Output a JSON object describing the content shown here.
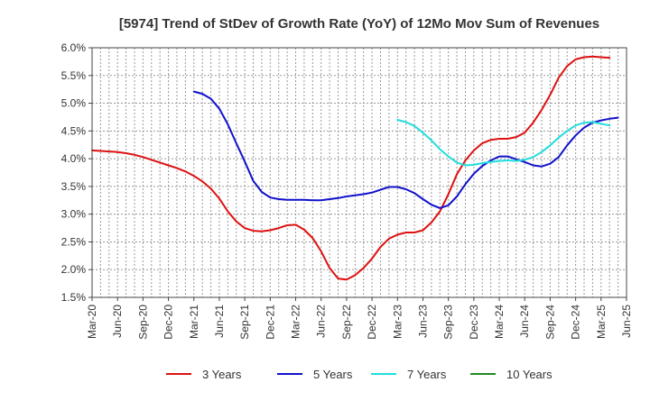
{
  "chart_data": {
    "type": "line",
    "title": "[5974]  Trend of StDev of Growth Rate (YoY) of 12Mo Mov Sum of Revenues",
    "xlabel": "",
    "ylabel": "",
    "ylim": [
      1.5,
      6.0
    ],
    "yticks": [
      "6.0%",
      "5.5%",
      "5.0%",
      "4.5%",
      "4.0%",
      "3.5%",
      "3.0%",
      "2.5%",
      "2.0%",
      "1.5%"
    ],
    "ytick_values": [
      6.0,
      5.5,
      5.0,
      4.5,
      4.0,
      3.5,
      3.0,
      2.5,
      2.0,
      1.5
    ],
    "x_tick_labels": [
      "Mar-20",
      "Jun-20",
      "Sep-20",
      "Dec-20",
      "Mar-21",
      "Jun-21",
      "Sep-21",
      "Dec-21",
      "Mar-22",
      "Jun-22",
      "Sep-22",
      "Dec-22",
      "Mar-23",
      "Jun-23",
      "Sep-23",
      "Dec-23",
      "Mar-24",
      "Jun-24",
      "Sep-24",
      "Dec-24",
      "Mar-25",
      "Jun-25"
    ],
    "x_months": 63,
    "grid": true,
    "legend_position": "bottom",
    "series": [
      {
        "name": "3 Years",
        "color": "#dd1111",
        "start_month": 0,
        "values": [
          4.15,
          4.14,
          4.13,
          4.12,
          4.1,
          4.07,
          4.03,
          3.98,
          3.93,
          3.88,
          3.83,
          3.77,
          3.69,
          3.59,
          3.46,
          3.28,
          3.05,
          2.87,
          2.75,
          2.7,
          2.69,
          2.71,
          2.75,
          2.8,
          2.81,
          2.72,
          2.57,
          2.33,
          2.03,
          1.84,
          1.82,
          1.9,
          2.03,
          2.2,
          2.41,
          2.56,
          2.63,
          2.67,
          2.67,
          2.71,
          2.85,
          3.05,
          3.36,
          3.72,
          3.97,
          4.15,
          4.28,
          4.34,
          4.36,
          4.36,
          4.39,
          4.47,
          4.65,
          4.88,
          5.15,
          5.46,
          5.67,
          5.79,
          5.83,
          5.84,
          5.83,
          5.82
        ]
      },
      {
        "name": "5 Years",
        "color": "#1111cc",
        "start_month": 12,
        "values": [
          5.21,
          5.17,
          5.08,
          4.9,
          4.62,
          4.28,
          3.95,
          3.6,
          3.4,
          3.3,
          3.27,
          3.26,
          3.26,
          3.26,
          3.25,
          3.25,
          3.27,
          3.29,
          3.32,
          3.34,
          3.36,
          3.39,
          3.44,
          3.49,
          3.49,
          3.45,
          3.38,
          3.27,
          3.17,
          3.11,
          3.16,
          3.32,
          3.54,
          3.73,
          3.87,
          3.97,
          4.04,
          4.04,
          3.99,
          3.94,
          3.88,
          3.86,
          3.91,
          4.03,
          4.24,
          4.42,
          4.56,
          4.65,
          4.69,
          4.72,
          4.74
        ]
      },
      {
        "name": "7 Years",
        "color": "#22dddd",
        "start_month": 36,
        "values": [
          4.7,
          4.66,
          4.59,
          4.47,
          4.33,
          4.17,
          4.04,
          3.93,
          3.88,
          3.89,
          3.92,
          3.94,
          3.96,
          3.97,
          3.96,
          3.98,
          4.03,
          4.12,
          4.24,
          4.38,
          4.5,
          4.6,
          4.65,
          4.66,
          4.63,
          4.6
        ]
      },
      {
        "name": "10 Years",
        "color": "#228822",
        "start_month": 0,
        "values": []
      }
    ]
  }
}
